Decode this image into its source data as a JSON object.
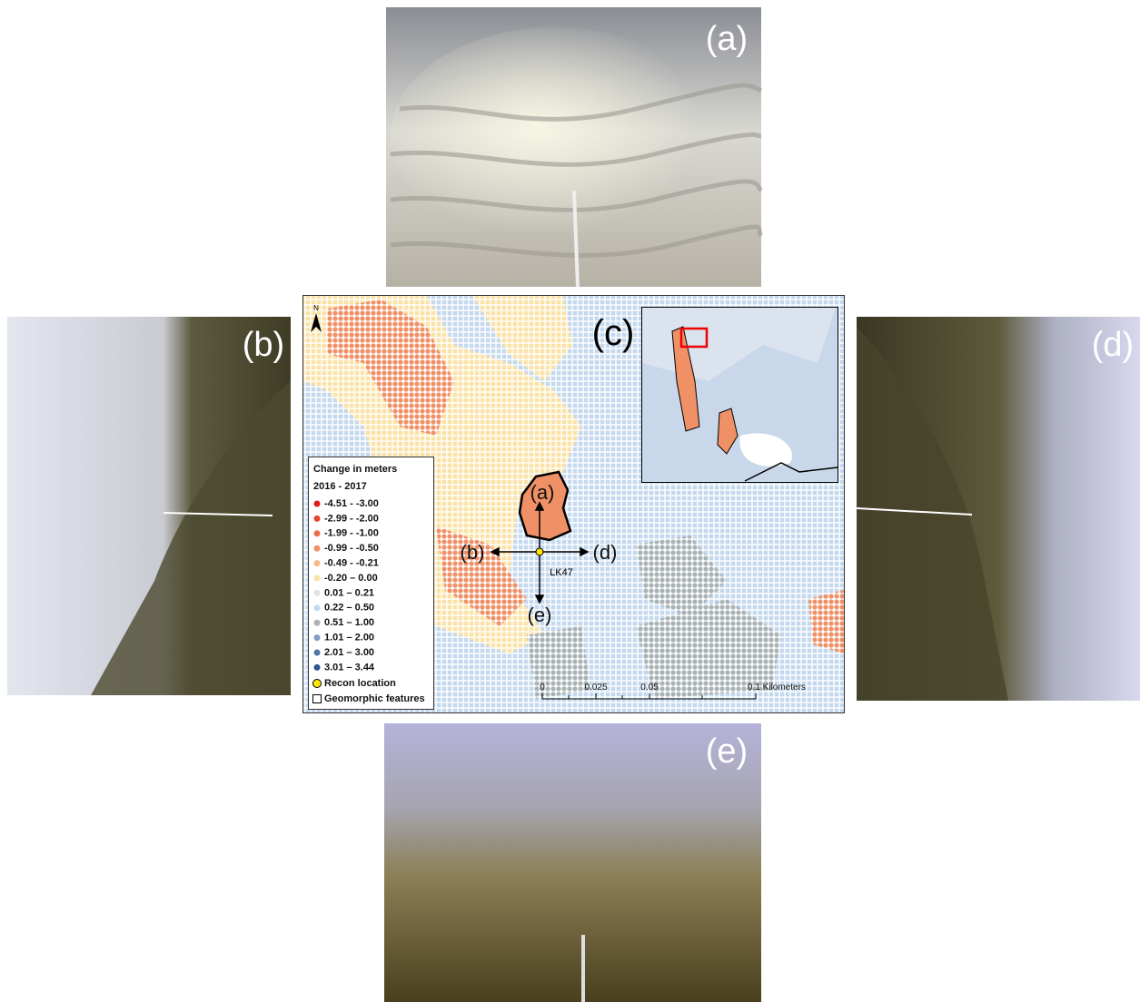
{
  "panels": {
    "a": "(a)",
    "b": "(b)",
    "c": "(c)",
    "d": "(d)",
    "e": "(e)"
  },
  "map": {
    "north": "N",
    "arrows": {
      "a": "(a)",
      "b": "(b)",
      "d": "(d)",
      "e": "(e)"
    },
    "site": "LK47",
    "legend": {
      "title": "Change in meters",
      "subtitle": "2016 - 2017",
      "items": [
        {
          "label": "-4.51 - -3.00",
          "color": "#e3191c"
        },
        {
          "label": "-2.99 - -2.00",
          "color": "#e8432b"
        },
        {
          "label": "-1.99 - -1.00",
          "color": "#ec6b47"
        },
        {
          "label": "-0.99 - -0.50",
          "color": "#f09066"
        },
        {
          "label": "-0.49 - -0.21",
          "color": "#f6bb88"
        },
        {
          "label": "-0.20 – 0.00",
          "color": "#fbe3a8"
        },
        {
          "label": "0.01 – 0.21",
          "color": "#e2e2e2"
        },
        {
          "label": "0.22 – 0.50",
          "color": "#c4d8ee"
        },
        {
          "label": "0.51 – 1.00",
          "color": "#a9b3b6"
        },
        {
          "label": "1.01 – 2.00",
          "color": "#7f9fc0"
        },
        {
          "label": "2.01 – 3.00",
          "color": "#4f75a5"
        },
        {
          "label": "3.01 – 3.44",
          "color": "#2c5590"
        }
      ],
      "recon": "Recon location",
      "geomorphic": "Geomorphic features"
    },
    "scale": {
      "ticks": [
        "0",
        "0.025",
        "0.05",
        "0.1 Kilometers"
      ]
    }
  }
}
